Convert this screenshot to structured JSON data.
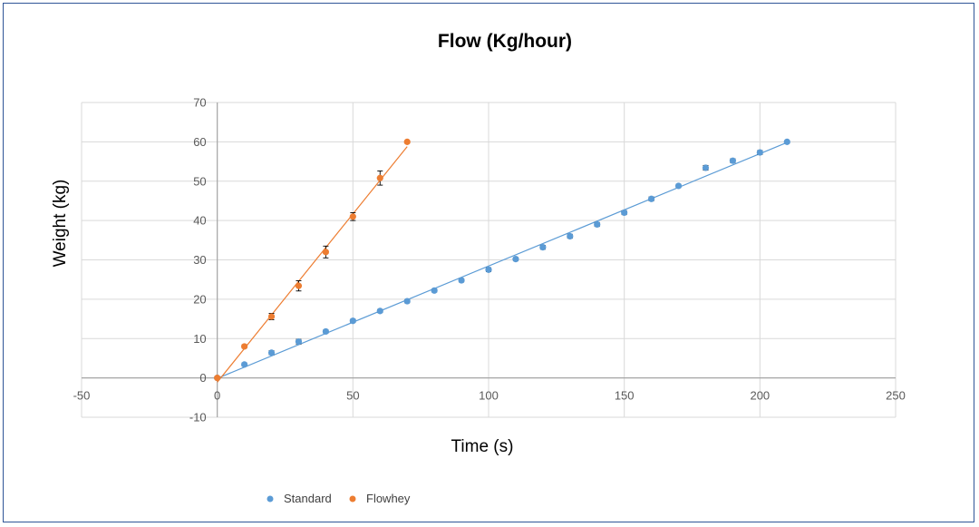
{
  "chart_data": {
    "type": "scatter",
    "title": "Flow (Kg/hour)",
    "xlabel": "Time (s)",
    "ylabel": "Weight (kg)",
    "xlim": [
      -50,
      250
    ],
    "ylim": [
      -10,
      70
    ],
    "x_ticks": [
      -50,
      0,
      50,
      100,
      150,
      200,
      250
    ],
    "y_ticks": [
      -10,
      0,
      10,
      20,
      30,
      40,
      50,
      60,
      70
    ],
    "grid": true,
    "legend_position": "bottom-left",
    "series": [
      {
        "name": "Standard",
        "color": "#5b9bd5",
        "trendline": true,
        "x": [
          0,
          10,
          20,
          30,
          40,
          50,
          60,
          70,
          80,
          90,
          100,
          110,
          120,
          130,
          140,
          150,
          160,
          170,
          180,
          190,
          200,
          210
        ],
        "y": [
          0,
          3.4,
          6.4,
          9.2,
          11.8,
          14.5,
          17.0,
          19.5,
          22.2,
          24.8,
          27.5,
          30.2,
          33.2,
          36.0,
          39.0,
          42.0,
          45.5,
          48.8,
          53.4,
          55.2,
          57.3,
          60.0
        ],
        "error": [
          0.3,
          0.4,
          0.5,
          0.6,
          0.4,
          0.4,
          0.4,
          0.4,
          0.4,
          0.4,
          0.5,
          0.4,
          0.5,
          0.5,
          0.5,
          0.5,
          0.5,
          0.4,
          0.6,
          0.5,
          0.5,
          0.3
        ]
      },
      {
        "name": "Flowhey",
        "color": "#ed7d31",
        "trendline": true,
        "x": [
          0,
          10,
          20,
          30,
          40,
          50,
          60,
          70
        ],
        "y": [
          0,
          8.0,
          15.6,
          23.4,
          32.0,
          41.0,
          50.8,
          60.0
        ],
        "error": [
          0.3,
          0.4,
          0.8,
          1.3,
          1.5,
          1.0,
          1.8,
          0.3
        ]
      }
    ]
  }
}
